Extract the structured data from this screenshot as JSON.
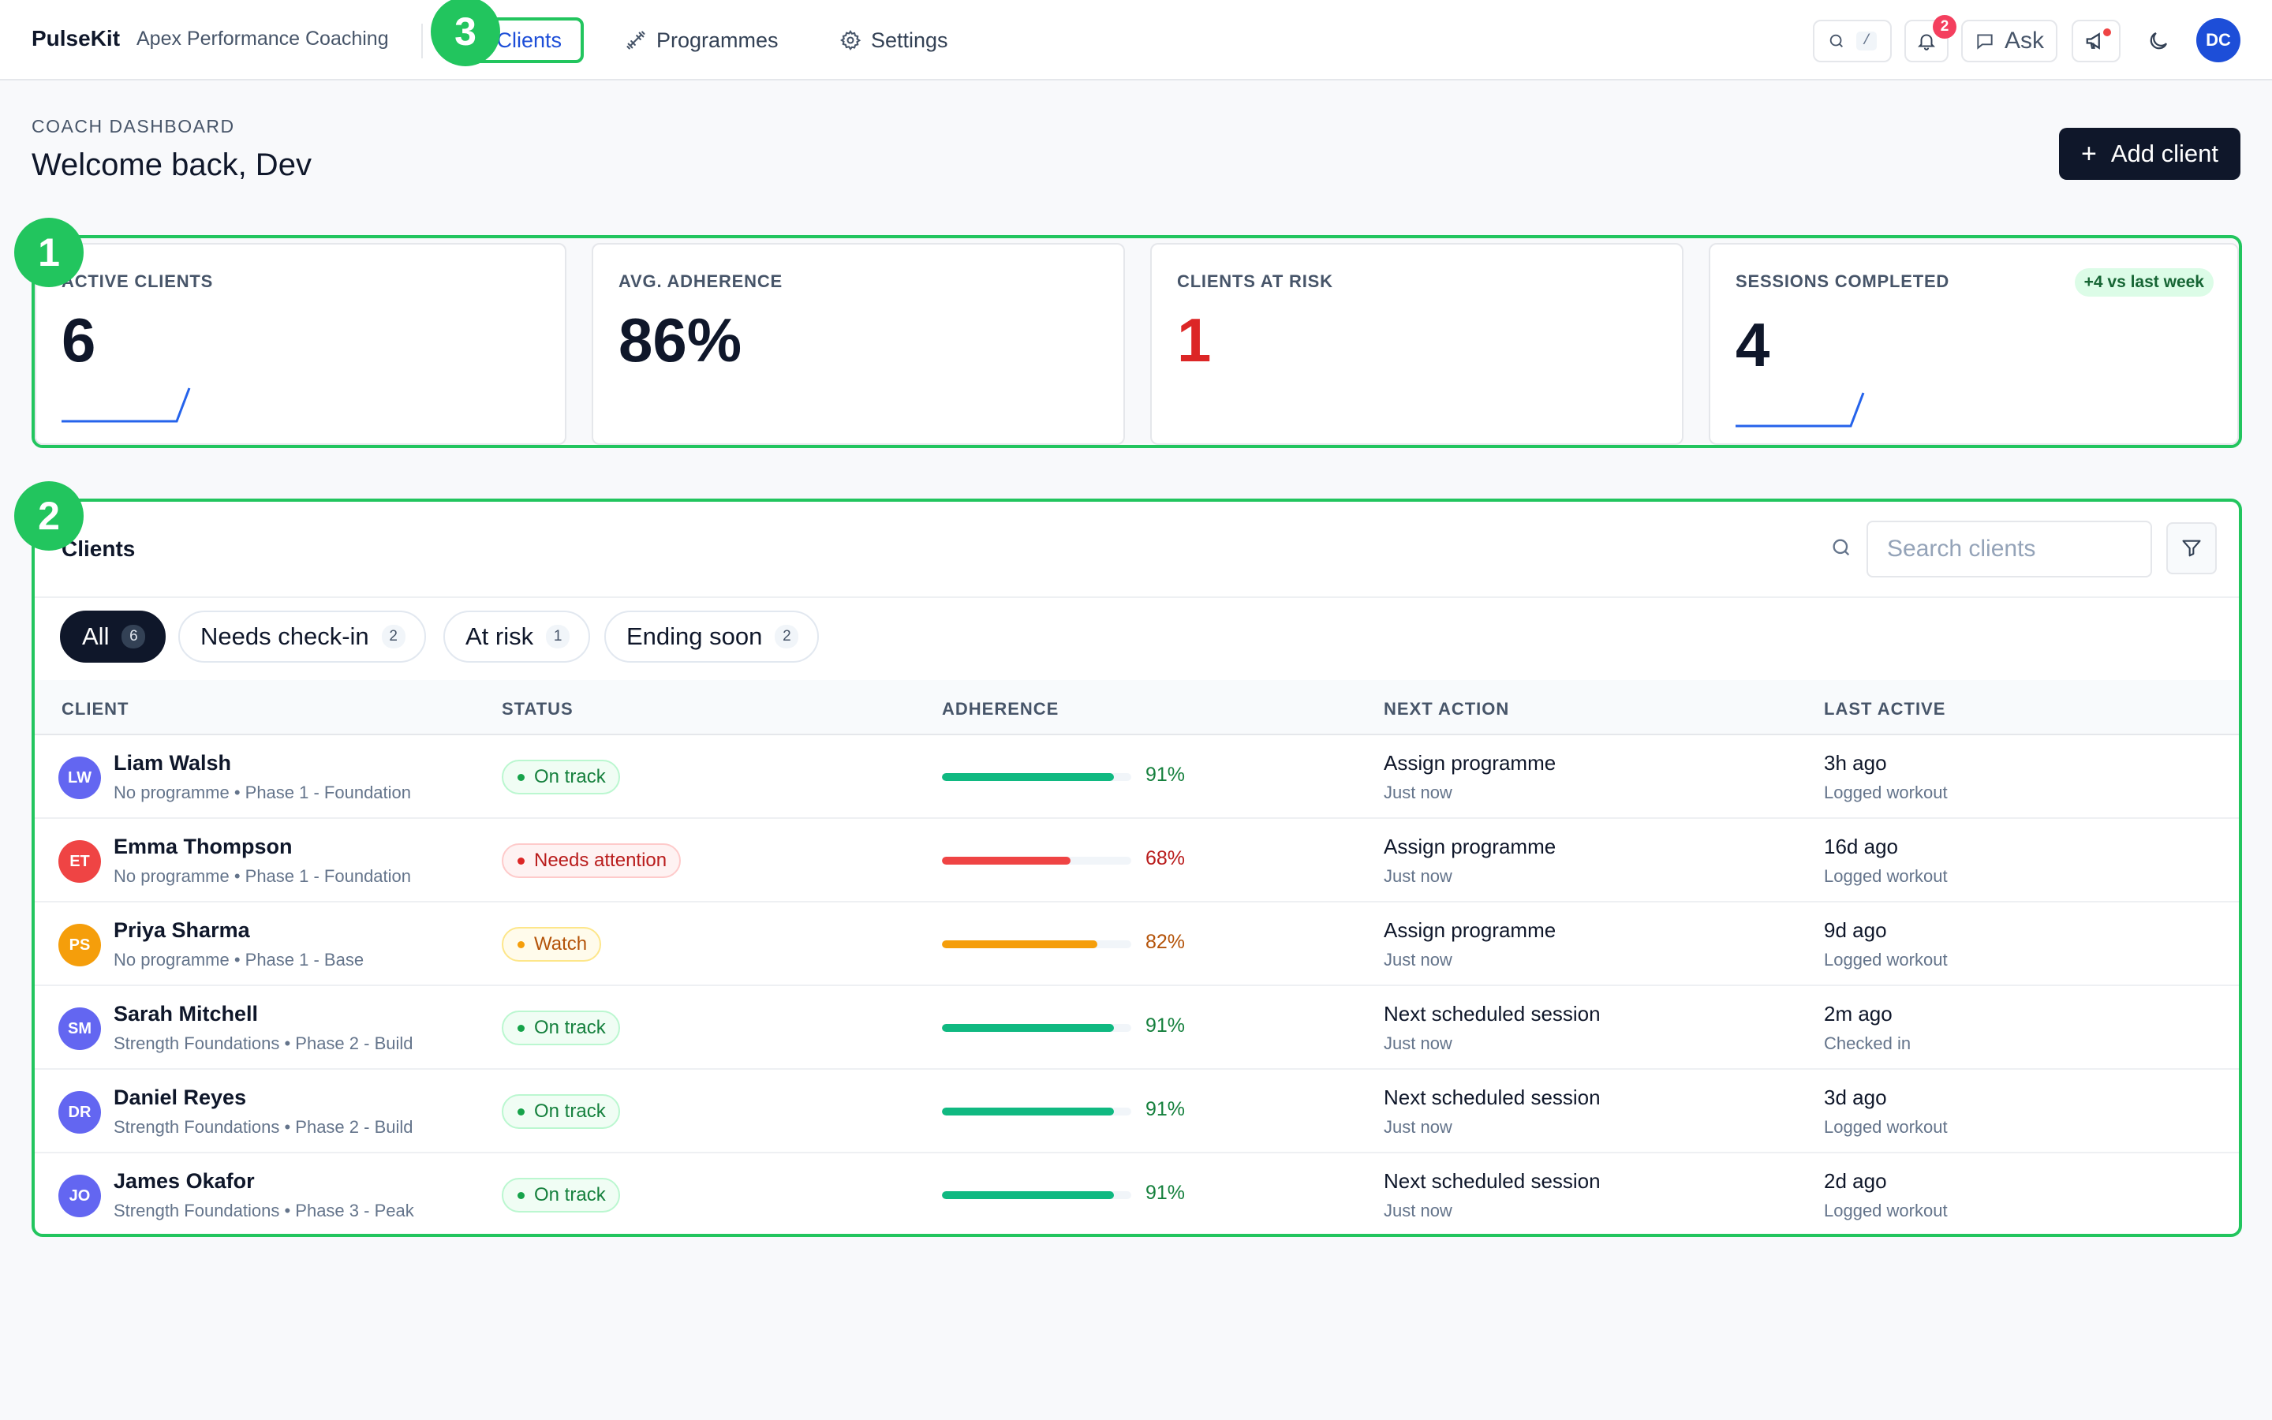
{
  "nav": {
    "brand": "PulseKit",
    "org": "Apex Performance Coaching",
    "items": [
      {
        "label": "Clients",
        "icon": "users-icon"
      },
      {
        "label": "Programmes",
        "icon": "dumbbell-icon"
      },
      {
        "label": "Settings",
        "icon": "gear-icon"
      }
    ],
    "search_shortcut": "/",
    "notification_count": "2",
    "ask_label": "Ask",
    "user_initials": "DC"
  },
  "header": {
    "eyebrow": "COACH DASHBOARD",
    "title": "Welcome back, Dev",
    "add_button": "Add client"
  },
  "stats": [
    {
      "label": "ACTIVE CLIENTS",
      "value": "6"
    },
    {
      "label": "AVG. ADHERENCE",
      "value": "86%"
    },
    {
      "label": "CLIENTS AT RISK",
      "value": "1"
    },
    {
      "label": "SESSIONS COMPLETED",
      "value": "4",
      "delta": "+4 vs last week"
    }
  ],
  "clients_panel": {
    "title": "Clients",
    "search_placeholder": "Search clients",
    "filters": [
      {
        "label": "All",
        "count": "6"
      },
      {
        "label": "Needs check-in",
        "count": "2"
      },
      {
        "label": "At risk",
        "count": "1"
      },
      {
        "label": "Ending soon",
        "count": "2"
      }
    ],
    "columns": [
      "CLIENT",
      "STATUS",
      "ADHERENCE",
      "NEXT ACTION",
      "LAST ACTIVE"
    ],
    "rows": [
      {
        "initials": "LW",
        "avatar_color": "#6366f1",
        "name": "Liam Walsh",
        "programme": "No programme • Phase 1 - Foundation",
        "status": "On track",
        "status_kind": "ok",
        "adherence": 91,
        "adherence_label": "91%",
        "next_action": "Assign programme",
        "next_action_time": "Just now",
        "last_active": "3h ago",
        "last_activity": "Logged workout"
      },
      {
        "initials": "ET",
        "avatar_color": "#ef4444",
        "name": "Emma Thompson",
        "programme": "No programme • Phase 1 - Foundation",
        "status": "Needs attention",
        "status_kind": "bad",
        "adherence": 68,
        "adherence_label": "68%",
        "next_action": "Assign programme",
        "next_action_time": "Just now",
        "last_active": "16d ago",
        "last_activity": "Logged workout"
      },
      {
        "initials": "PS",
        "avatar_color": "#f59e0b",
        "name": "Priya Sharma",
        "programme": "No programme • Phase 1 - Base",
        "status": "Watch",
        "status_kind": "warn",
        "adherence": 82,
        "adherence_label": "82%",
        "next_action": "Assign programme",
        "next_action_time": "Just now",
        "last_active": "9d ago",
        "last_activity": "Logged workout"
      },
      {
        "initials": "SM",
        "avatar_color": "#6366f1",
        "name": "Sarah Mitchell",
        "programme": "Strength Foundations • Phase 2 - Build",
        "status": "On track",
        "status_kind": "ok",
        "adherence": 91,
        "adherence_label": "91%",
        "next_action": "Next scheduled session",
        "next_action_time": "Just now",
        "last_active": "2m ago",
        "last_activity": "Checked in"
      },
      {
        "initials": "DR",
        "avatar_color": "#6366f1",
        "name": "Daniel Reyes",
        "programme": "Strength Foundations • Phase 2 - Build",
        "status": "On track",
        "status_kind": "ok",
        "adherence": 91,
        "adherence_label": "91%",
        "next_action": "Next scheduled session",
        "next_action_time": "Just now",
        "last_active": "3d ago",
        "last_activity": "Logged workout"
      },
      {
        "initials": "JO",
        "avatar_color": "#6366f1",
        "name": "James Okafor",
        "programme": "Strength Foundations • Phase 3 - Peak",
        "status": "On track",
        "status_kind": "ok",
        "adherence": 91,
        "adherence_label": "91%",
        "next_action": "Next scheduled session",
        "next_action_time": "Just now",
        "last_active": "2d ago",
        "last_activity": "Logged workout"
      }
    ]
  },
  "markers": [
    "1",
    "2",
    "3"
  ],
  "colors": {
    "accent": "#22c55e",
    "primary": "#0f172a",
    "link": "#1d4ed8",
    "ok": "#10b981",
    "bad": "#ef4444",
    "warn": "#f59e0b"
  }
}
